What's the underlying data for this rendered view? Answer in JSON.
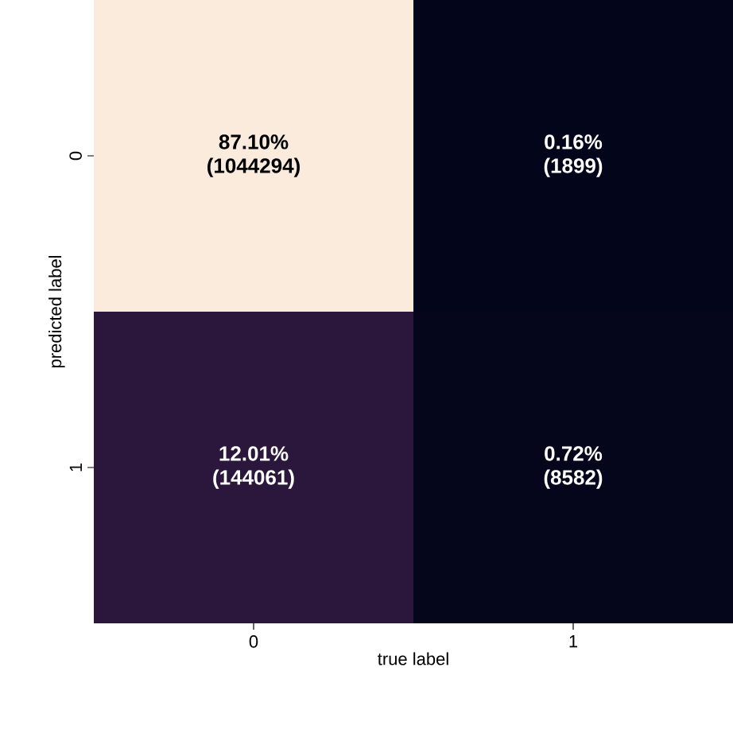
{
  "chart_data": {
    "type": "heatmap",
    "xlabel": "true label",
    "ylabel": "predicted label",
    "categories": [
      "0",
      "1"
    ],
    "y_categories": [
      "0",
      "1"
    ],
    "cells": [
      [
        87.1,
        0.16
      ],
      [
        12.01,
        0.72
      ]
    ],
    "cell_labels": [
      [
        "87.10%",
        "0.16%"
      ],
      [
        "12.01%",
        "0.72%"
      ]
    ],
    "annotations": [
      "(1044294)",
      "(1899)",
      "(144061)",
      "(8582)"
    ]
  }
}
